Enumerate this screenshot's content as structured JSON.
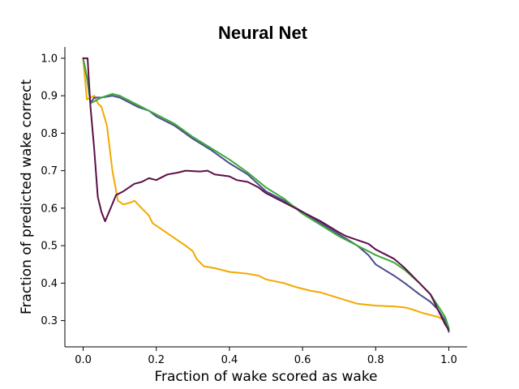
{
  "chart_data": {
    "type": "line",
    "title": "Neural Net",
    "xlabel": "Fraction of wake scored as wake",
    "ylabel": "Fraction of predicted wake correct",
    "xlim": [
      -0.05,
      1.05
    ],
    "ylim": [
      0.23,
      1.03
    ],
    "xticks": [
      0.0,
      0.2,
      0.4,
      0.6,
      0.8,
      1.0
    ],
    "xtick_labels": [
      "0.0",
      "0.2",
      "0.4",
      "0.6",
      "0.8",
      "1.0"
    ],
    "yticks": [
      0.3,
      0.4,
      0.5,
      0.6,
      0.7,
      0.8,
      0.9,
      1.0
    ],
    "ytick_labels": [
      "0.3",
      "0.4",
      "0.5",
      "0.6",
      "0.7",
      "0.8",
      "0.9",
      "1.0"
    ],
    "grid": false,
    "series": [
      {
        "color": "#f2a900",
        "points": [
          [
            0.0,
            1.0
          ],
          [
            0.01,
            0.89
          ],
          [
            0.02,
            0.895
          ],
          [
            0.03,
            0.9
          ],
          [
            0.04,
            0.88
          ],
          [
            0.05,
            0.87
          ],
          [
            0.065,
            0.82
          ],
          [
            0.08,
            0.7
          ],
          [
            0.095,
            0.62
          ],
          [
            0.11,
            0.61
          ],
          [
            0.13,
            0.615
          ],
          [
            0.14,
            0.62
          ],
          [
            0.16,
            0.6
          ],
          [
            0.18,
            0.58
          ],
          [
            0.19,
            0.56
          ],
          [
            0.22,
            0.54
          ],
          [
            0.25,
            0.52
          ],
          [
            0.28,
            0.5
          ],
          [
            0.3,
            0.485
          ],
          [
            0.31,
            0.465
          ],
          [
            0.33,
            0.445
          ],
          [
            0.36,
            0.44
          ],
          [
            0.4,
            0.43
          ],
          [
            0.45,
            0.425
          ],
          [
            0.48,
            0.42
          ],
          [
            0.5,
            0.41
          ],
          [
            0.55,
            0.4
          ],
          [
            0.58,
            0.39
          ],
          [
            0.62,
            0.38
          ],
          [
            0.65,
            0.375
          ],
          [
            0.7,
            0.36
          ],
          [
            0.75,
            0.345
          ],
          [
            0.8,
            0.34
          ],
          [
            0.85,
            0.338
          ],
          [
            0.88,
            0.335
          ],
          [
            0.9,
            0.33
          ],
          [
            0.93,
            0.32
          ],
          [
            0.95,
            0.315
          ],
          [
            0.97,
            0.31
          ],
          [
            0.99,
            0.3
          ],
          [
            1.0,
            0.28
          ]
        ]
      },
      {
        "color": "#4b4c8c",
        "points": [
          [
            0.0,
            1.0
          ],
          [
            0.01,
            0.95
          ],
          [
            0.02,
            0.88
          ],
          [
            0.03,
            0.895
          ],
          [
            0.05,
            0.895
          ],
          [
            0.08,
            0.9
          ],
          [
            0.1,
            0.895
          ],
          [
            0.12,
            0.885
          ],
          [
            0.15,
            0.87
          ],
          [
            0.18,
            0.86
          ],
          [
            0.2,
            0.845
          ],
          [
            0.25,
            0.82
          ],
          [
            0.3,
            0.785
          ],
          [
            0.35,
            0.755
          ],
          [
            0.4,
            0.72
          ],
          [
            0.45,
            0.69
          ],
          [
            0.5,
            0.645
          ],
          [
            0.55,
            0.62
          ],
          [
            0.6,
            0.59
          ],
          [
            0.65,
            0.56
          ],
          [
            0.7,
            0.53
          ],
          [
            0.75,
            0.5
          ],
          [
            0.78,
            0.475
          ],
          [
            0.8,
            0.45
          ],
          [
            0.85,
            0.42
          ],
          [
            0.88,
            0.4
          ],
          [
            0.92,
            0.37
          ],
          [
            0.95,
            0.35
          ],
          [
            0.97,
            0.33
          ],
          [
            0.99,
            0.3
          ],
          [
            1.0,
            0.27
          ]
        ]
      },
      {
        "color": "#3aaa3a",
        "points": [
          [
            0.0,
            1.0
          ],
          [
            0.01,
            0.95
          ],
          [
            0.02,
            0.88
          ],
          [
            0.03,
            0.885
          ],
          [
            0.05,
            0.895
          ],
          [
            0.08,
            0.905
          ],
          [
            0.1,
            0.9
          ],
          [
            0.12,
            0.89
          ],
          [
            0.15,
            0.875
          ],
          [
            0.18,
            0.86
          ],
          [
            0.2,
            0.85
          ],
          [
            0.25,
            0.825
          ],
          [
            0.3,
            0.79
          ],
          [
            0.35,
            0.76
          ],
          [
            0.4,
            0.73
          ],
          [
            0.45,
            0.695
          ],
          [
            0.5,
            0.655
          ],
          [
            0.55,
            0.625
          ],
          [
            0.6,
            0.585
          ],
          [
            0.65,
            0.555
          ],
          [
            0.7,
            0.525
          ],
          [
            0.75,
            0.5
          ],
          [
            0.8,
            0.475
          ],
          [
            0.85,
            0.455
          ],
          [
            0.88,
            0.435
          ],
          [
            0.92,
            0.4
          ],
          [
            0.95,
            0.37
          ],
          [
            0.97,
            0.34
          ],
          [
            0.99,
            0.31
          ],
          [
            1.0,
            0.28
          ]
        ]
      },
      {
        "color": "#5c0f47",
        "points": [
          [
            0.0,
            1.0
          ],
          [
            0.012,
            1.0
          ],
          [
            0.02,
            0.87
          ],
          [
            0.03,
            0.76
          ],
          [
            0.04,
            0.63
          ],
          [
            0.05,
            0.59
          ],
          [
            0.06,
            0.565
          ],
          [
            0.075,
            0.6
          ],
          [
            0.09,
            0.635
          ],
          [
            0.11,
            0.645
          ],
          [
            0.14,
            0.665
          ],
          [
            0.16,
            0.67
          ],
          [
            0.18,
            0.68
          ],
          [
            0.2,
            0.675
          ],
          [
            0.23,
            0.69
          ],
          [
            0.26,
            0.695
          ],
          [
            0.28,
            0.7
          ],
          [
            0.32,
            0.698
          ],
          [
            0.34,
            0.7
          ],
          [
            0.36,
            0.69
          ],
          [
            0.4,
            0.685
          ],
          [
            0.42,
            0.675
          ],
          [
            0.45,
            0.67
          ],
          [
            0.48,
            0.655
          ],
          [
            0.5,
            0.64
          ],
          [
            0.55,
            0.615
          ],
          [
            0.6,
            0.59
          ],
          [
            0.65,
            0.565
          ],
          [
            0.7,
            0.535
          ],
          [
            0.72,
            0.525
          ],
          [
            0.75,
            0.515
          ],
          [
            0.78,
            0.505
          ],
          [
            0.8,
            0.49
          ],
          [
            0.85,
            0.465
          ],
          [
            0.88,
            0.44
          ],
          [
            0.92,
            0.4
          ],
          [
            0.95,
            0.37
          ],
          [
            0.97,
            0.33
          ],
          [
            0.99,
            0.29
          ],
          [
            1.0,
            0.275
          ]
        ]
      }
    ]
  }
}
